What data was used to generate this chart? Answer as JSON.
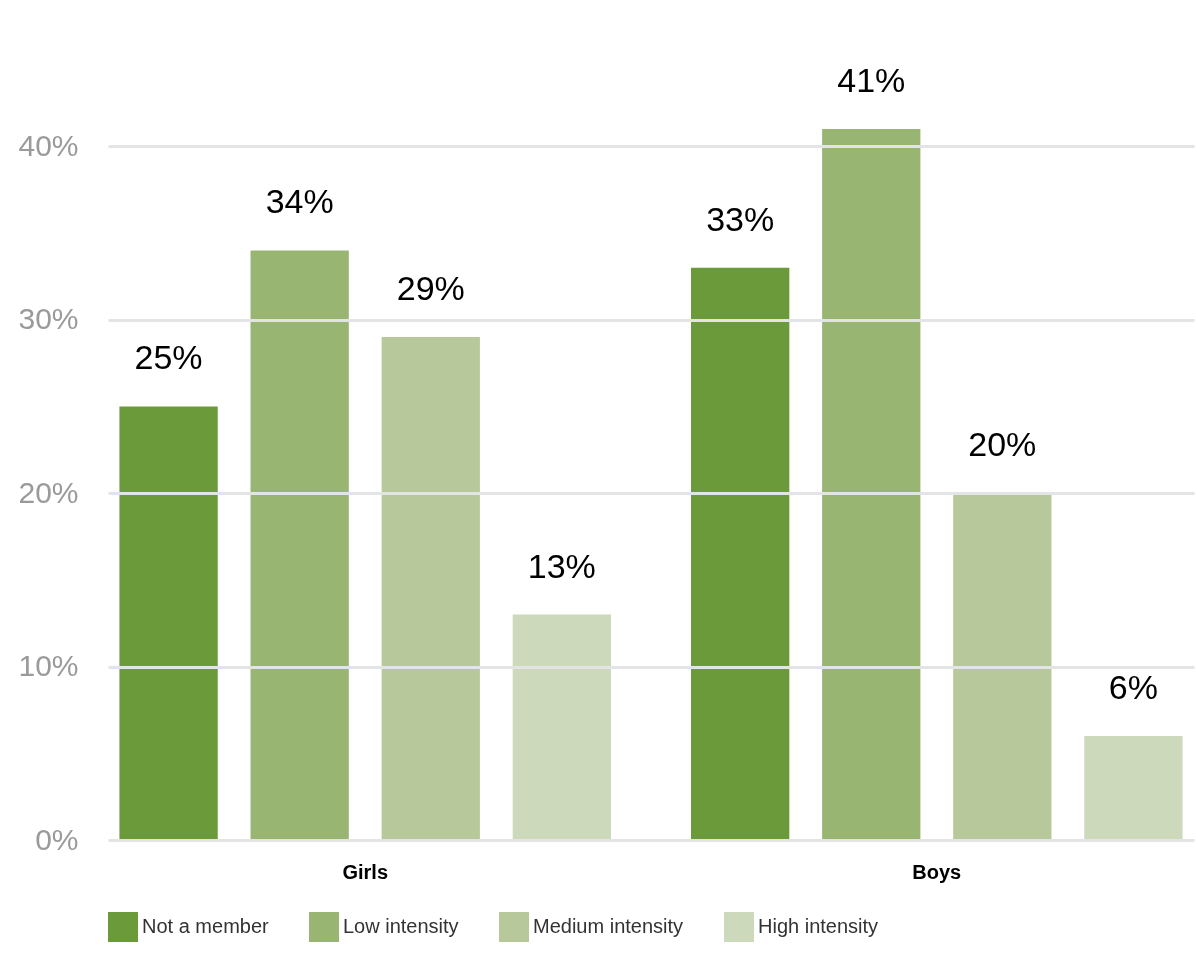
{
  "chart_data": {
    "type": "bar",
    "categories": [
      "Girls",
      "Boys"
    ],
    "series": [
      {
        "name": "Not a member",
        "color": "#6a9a3a",
        "values": [
          25,
          33
        ],
        "value_labels": [
          "25%",
          "33%"
        ]
      },
      {
        "name": "Low intensity",
        "color": "#98b672",
        "values": [
          34,
          41
        ],
        "value_labels": [
          "34%",
          "41%"
        ]
      },
      {
        "name": "Medium intensity",
        "color": "#b7c99b",
        "values": [
          29,
          20
        ],
        "value_labels": [
          "29%",
          "20%"
        ]
      },
      {
        "name": "High intensity",
        "color": "#cdd9bb",
        "values": [
          13,
          6
        ],
        "value_labels": [
          "13%",
          "6%"
        ]
      }
    ],
    "ylim": [
      0,
      41
    ],
    "yticks": [
      {
        "value": 0,
        "label": "0%"
      },
      {
        "value": 10,
        "label": "10%"
      },
      {
        "value": 20,
        "label": "20%"
      },
      {
        "value": 30,
        "label": "30%"
      },
      {
        "value": 40,
        "label": "40%"
      }
    ],
    "grid": "y",
    "legend": "bottom"
  }
}
